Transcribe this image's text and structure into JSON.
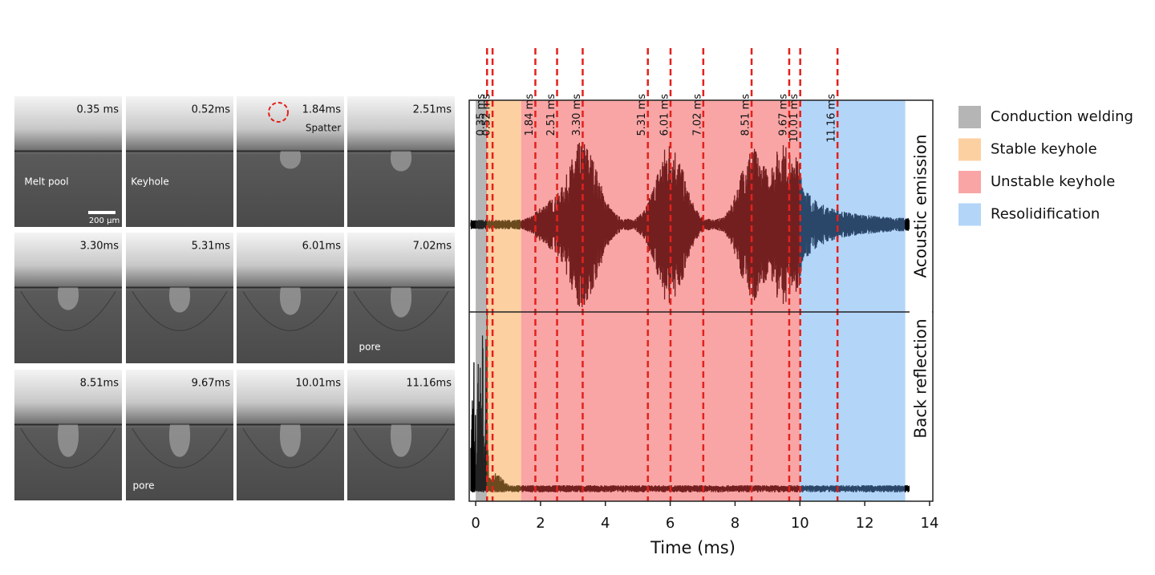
{
  "images": [
    {
      "label": "0.35 ms",
      "notes": [
        "Melt pool",
        "200 μm"
      ]
    },
    {
      "label": "0.52ms",
      "notes": [
        "Keyhole"
      ]
    },
    {
      "label": "1.84ms",
      "notes": [
        "Spatter"
      ]
    },
    {
      "label": "2.51ms",
      "notes": []
    },
    {
      "label": "3.30ms",
      "notes": []
    },
    {
      "label": "5.31ms",
      "notes": []
    },
    {
      "label": "6.01ms",
      "notes": []
    },
    {
      "label": "7.02ms",
      "notes": [
        "pore"
      ]
    },
    {
      "label": "8.51ms",
      "notes": []
    },
    {
      "label": "9.67ms",
      "notes": [
        "pore"
      ]
    },
    {
      "label": "10.01ms",
      "notes": []
    },
    {
      "label": "11.16ms",
      "notes": []
    }
  ],
  "chart_data": {
    "type": "timeline",
    "xlabel": "Time (ms)",
    "xlim": [
      -0.2,
      14.1
    ],
    "xticks": [
      0,
      2,
      4,
      6,
      8,
      10,
      12,
      14
    ],
    "events": [
      {
        "value": 0.35,
        "label": "0.35 ms"
      },
      {
        "value": 0.52,
        "label": "0.52 ms"
      },
      {
        "value": 1.84,
        "label": "1.84 ms"
      },
      {
        "value": 2.51,
        "label": "2.51 ms"
      },
      {
        "value": 3.3,
        "label": "3.30 ms"
      },
      {
        "value": 5.31,
        "label": "5.31 ms"
      },
      {
        "value": 6.01,
        "label": "6.01 ms"
      },
      {
        "value": 7.02,
        "label": "7.02 ms"
      },
      {
        "value": 8.51,
        "label": "8.51 ms"
      },
      {
        "value": 9.67,
        "label": "9.67 ms"
      },
      {
        "value": 10.01,
        "label": "10.01 ms"
      },
      {
        "value": 11.16,
        "label": "11.16 ms"
      }
    ],
    "event_color": "#e3211c",
    "regions": [
      {
        "name": "Conduction welding",
        "start": 0,
        "end": 0.35,
        "color": "#b5b5b5",
        "signal_color": "#222222"
      },
      {
        "name": "Stable keyhole",
        "start": 0.35,
        "end": 1.4,
        "color": "#fdd0a2",
        "signal_color": "#6b4a1e"
      },
      {
        "name": "Unstable keyhole",
        "start": 1.4,
        "end": 10,
        "color": "#f9a5a5",
        "signal_color": "#741f1f"
      },
      {
        "name": "Resolidification",
        "start": 10,
        "end": 13.25,
        "color": "#b3d5f8",
        "signal_color": "#2a4669"
      }
    ],
    "panels": [
      "Acoustic emission",
      "Back reflection"
    ]
  }
}
